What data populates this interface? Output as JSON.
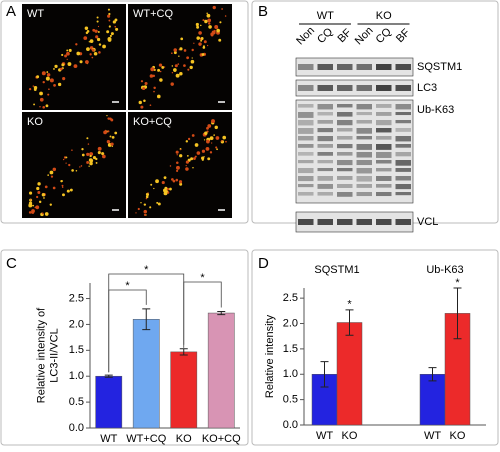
{
  "panel_letters": [
    "A",
    "B",
    "C",
    "D"
  ],
  "images": [
    "WT",
    "WT+CQ",
    "KO",
    "KO+CQ"
  ],
  "blot": {
    "groups": [
      "WT",
      "KO"
    ],
    "lanes": [
      "Non",
      "CQ",
      "BF",
      "Non",
      "CQ",
      "BF"
    ],
    "bands": [
      "SQSTM1",
      "LC3",
      "Ub-K63",
      "VCL"
    ]
  },
  "chart_data": [
    {
      "type": "bar",
      "ylabel": "Relative intensity of\nLC3-II/VCL",
      "categories": [
        "WT",
        "WT+CQ",
        "KO",
        "KO+CQ"
      ],
      "values": [
        1.0,
        2.1,
        1.47,
        2.22
      ],
      "errors": [
        0.02,
        0.2,
        0.06,
        0.03
      ],
      "colors": [
        "#2323e0",
        "#6fa8f0",
        "#ec2a2a",
        "#d894b4"
      ],
      "ylim": [
        0,
        2.8
      ],
      "yticks": [
        {
          "value": 0,
          "label": "0.0"
        },
        0.5,
        {
          "value": 1,
          "label": "1.0"
        },
        1.5,
        {
          "value": 2,
          "label": "2.0"
        },
        2.5
      ],
      "annotations": [
        "*",
        "*",
        "*"
      ]
    },
    {
      "type": "bar",
      "ylabel": "Relative intensity",
      "group_labels": [
        "SQSTM1",
        "Ub-K63"
      ],
      "categories": [
        "WT",
        "KO",
        "WT",
        "KO"
      ],
      "values": [
        1.0,
        2.02,
        1.0,
        2.2
      ],
      "errors": [
        0.25,
        0.25,
        0.13,
        0.5
      ],
      "colors": [
        "#2323e0",
        "#ec2a2a",
        "#2323e0",
        "#ec2a2a"
      ],
      "ylim": [
        0,
        2.7
      ],
      "yticks": [
        {
          "value": 0,
          "label": "0.0"
        },
        0.5,
        {
          "value": 1,
          "label": "1.0"
        },
        1.5,
        {
          "value": 2,
          "label": "2.0"
        },
        2.5
      ],
      "annotations": [
        "*",
        "*"
      ]
    }
  ]
}
